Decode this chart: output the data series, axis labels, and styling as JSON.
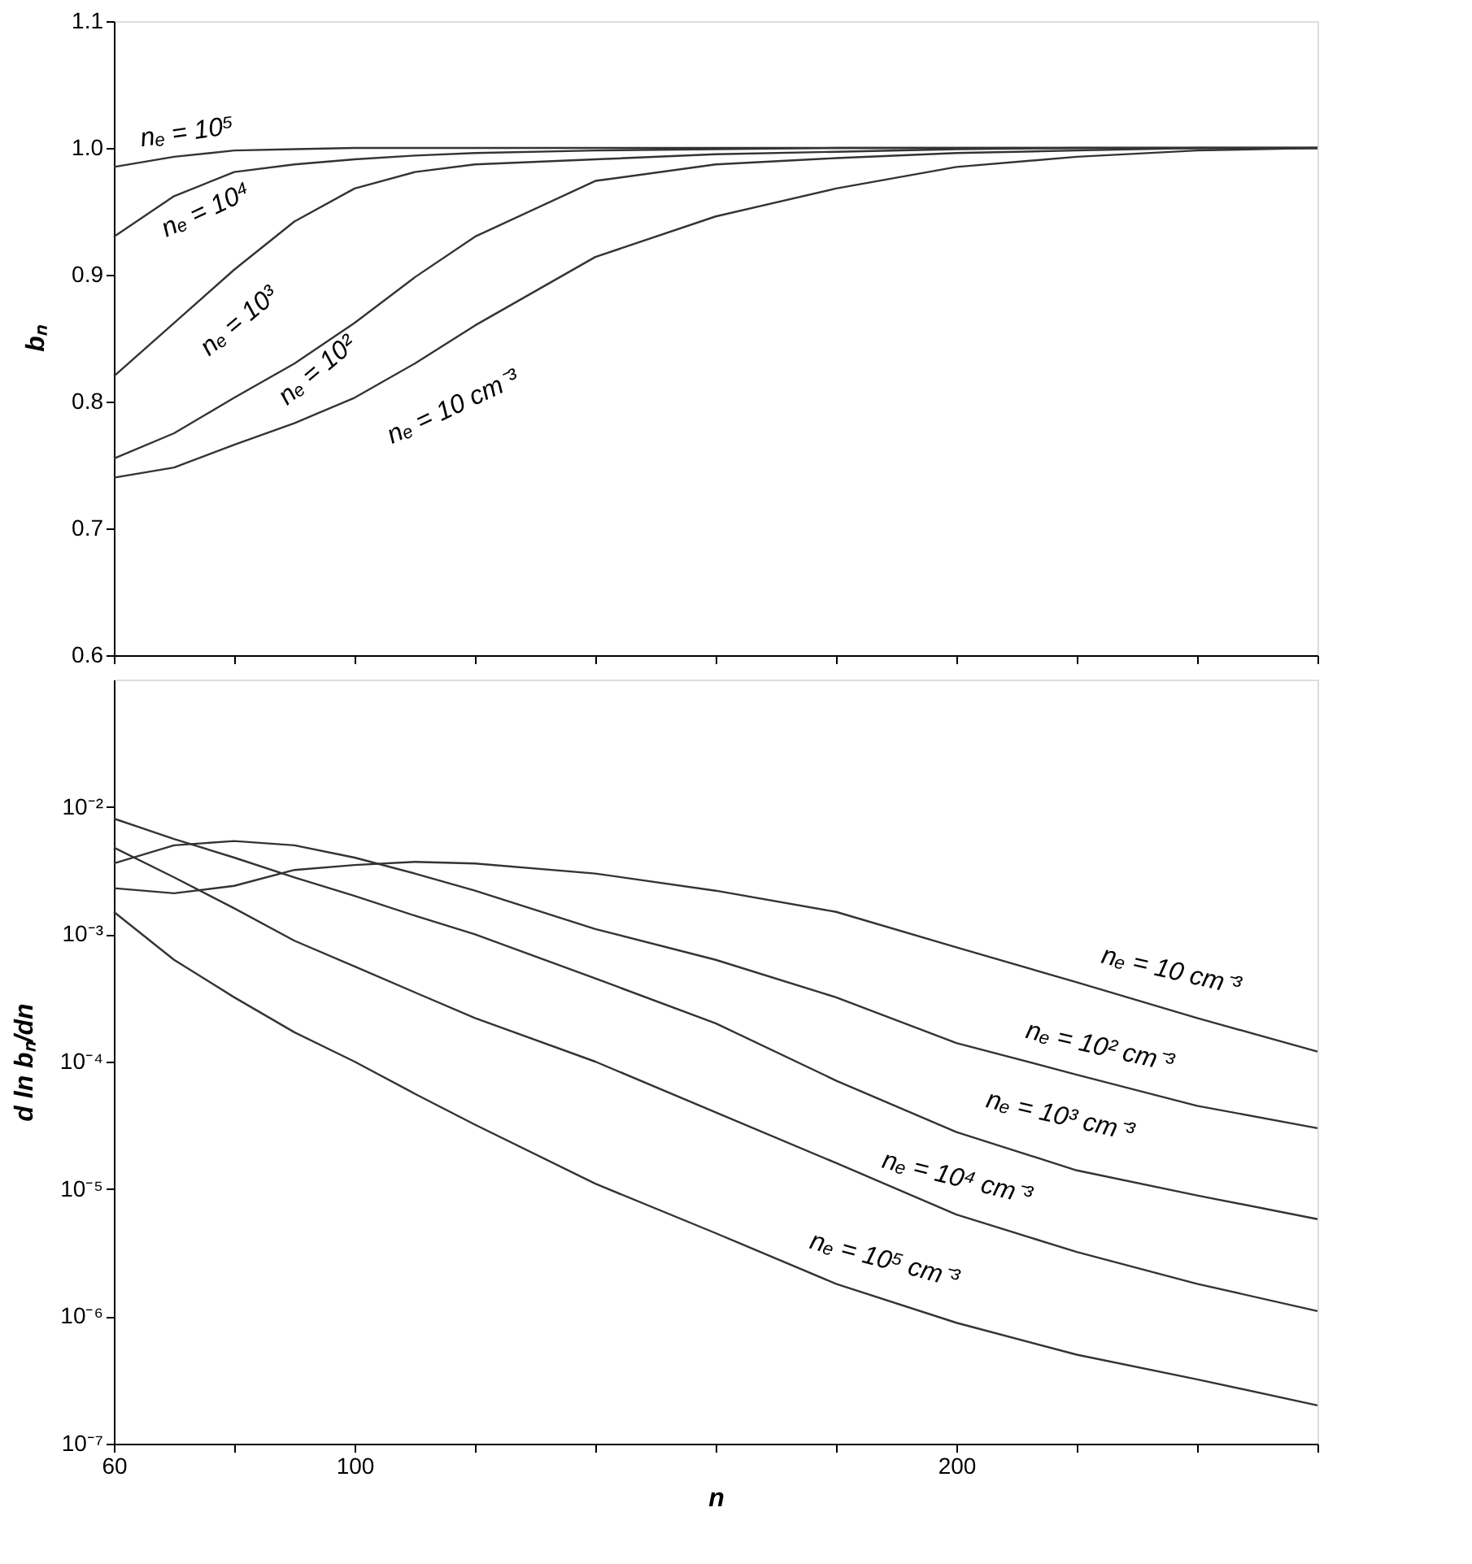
{
  "chart_data": [
    {
      "type": "line",
      "ylabel": "bₙ",
      "xlim": [
        60,
        260
      ],
      "ylim": [
        0.6,
        1.1
      ],
      "tick_labels": "y",
      "grid": false,
      "legend": false,
      "marker": "none",
      "line_style": "solid",
      "xticks": [
        60,
        80,
        100,
        120,
        140,
        160,
        180,
        200,
        220,
        240,
        260
      ],
      "yticks": [
        {
          "value": 0.6,
          "label": "0.6"
        },
        {
          "value": 0.7,
          "label": "0.7"
        },
        {
          "value": 0.8,
          "label": "0.8"
        },
        {
          "value": 0.9,
          "label": "0.9"
        },
        {
          "value": 1.0,
          "label": "1.0"
        },
        {
          "value": 1.1,
          "label": "1.1"
        }
      ],
      "x": [
        60,
        70,
        80,
        90,
        100,
        110,
        120,
        140,
        160,
        180,
        200,
        220,
        240,
        260
      ],
      "series": [
        {
          "name": "nₑ = 10⁵",
          "color": "#333333",
          "values": [
            0.985,
            0.993,
            0.998,
            0.999,
            1.0,
            1.0,
            1.0,
            1.0,
            1.0,
            1.0,
            1.0,
            1.0,
            1.0,
            1.0
          ]
        },
        {
          "name": "nₑ = 10⁴",
          "color": "#333333",
          "values": [
            0.93,
            0.962,
            0.981,
            0.987,
            0.991,
            0.994,
            0.996,
            0.998,
            0.999,
            1.0,
            1.0,
            1.0,
            1.0,
            1.0
          ]
        },
        {
          "name": "nₑ = 10³",
          "color": "#333333",
          "values": [
            0.82,
            0.862,
            0.904,
            0.942,
            0.968,
            0.981,
            0.987,
            0.991,
            0.995,
            0.997,
            0.999,
            1.0,
            1.0,
            1.0
          ]
        },
        {
          "name": "nₑ = 10²",
          "color": "#333333",
          "values": [
            0.755,
            0.775,
            0.803,
            0.83,
            0.862,
            0.898,
            0.93,
            0.974,
            0.987,
            0.992,
            0.996,
            0.998,
            1.0,
            1.0
          ]
        },
        {
          "name": "nₑ = 10 cm⁻³",
          "color": "#333333",
          "values": [
            0.74,
            0.748,
            0.766,
            0.783,
            0.803,
            0.83,
            0.86,
            0.914,
            0.946,
            0.968,
            0.985,
            0.993,
            0.998,
            1.0
          ]
        }
      ]
    },
    {
      "type": "line",
      "xlabel": "n",
      "ylabel": "d ln bₙ/dn",
      "log": "y",
      "xlim": [
        60,
        260
      ],
      "ylim": [
        1e-07,
        0.1
      ],
      "grid": false,
      "legend": false,
      "marker": "none",
      "line_style": "solid",
      "xticks": [
        60,
        {
          "value": 80,
          "label": null
        },
        100,
        {
          "value": 120,
          "label": null
        },
        {
          "value": 140,
          "label": null
        },
        {
          "value": 160,
          "label": null
        },
        {
          "value": 180,
          "label": null
        },
        200,
        {
          "value": 220,
          "label": null
        },
        {
          "value": 240,
          "label": null
        },
        {
          "value": 260,
          "label": null
        }
      ],
      "yticks": [
        {
          "value": 1e-07,
          "label": "10⁻⁷"
        },
        {
          "value": 1e-06,
          "label": "10⁻⁶"
        },
        {
          "value": 1e-05,
          "label": "10⁻⁵"
        },
        {
          "value": 0.0001,
          "label": "10⁻⁴"
        },
        {
          "value": 0.001,
          "label": "10⁻³"
        },
        {
          "value": 0.01,
          "label": "10⁻²"
        }
      ],
      "x": [
        60,
        70,
        80,
        90,
        100,
        110,
        120,
        140,
        160,
        180,
        200,
        220,
        240,
        260
      ],
      "series": [
        {
          "name": "nₑ = 10 cm⁻³",
          "color": "#333333",
          "values": [
            0.0023,
            0.0021,
            0.0024,
            0.0032,
            0.0035,
            0.0037,
            0.0036,
            0.003,
            0.0022,
            0.0015,
            0.00079,
            0.00042,
            0.00022,
            0.00012
          ]
        },
        {
          "name": "nₑ = 10² cm⁻³",
          "color": "#333333",
          "values": [
            0.0036,
            0.005,
            0.0054,
            0.005,
            0.004,
            0.003,
            0.0022,
            0.0011,
            0.00063,
            0.00032,
            0.00014,
            7.9e-05,
            4.5e-05,
            3e-05
          ]
        },
        {
          "name": "nₑ = 10³ cm⁻³",
          "color": "#333333",
          "values": [
            0.0081,
            0.0056,
            0.004,
            0.0028,
            0.002,
            0.0014,
            0.001,
            0.00045,
            0.0002,
            7.1e-05,
            2.8e-05,
            1.4e-05,
            8.9e-06,
            5.8e-06
          ]
        },
        {
          "name": "nₑ = 10⁴ cm⁻³",
          "color": "#333333",
          "values": [
            0.0048,
            0.0028,
            0.0016,
            0.00089,
            0.00056,
            0.00035,
            0.00022,
            0.0001,
            4e-05,
            1.6e-05,
            6.3e-06,
            3.2e-06,
            1.8e-06,
            1.1e-06
          ]
        },
        {
          "name": "nₑ = 10⁵ cm⁻³",
          "color": "#333333",
          "values": [
            0.0015,
            0.00063,
            0.00032,
            0.00017,
            0.0001,
            5.6e-05,
            3.2e-05,
            1.1e-05,
            4.5e-06,
            1.8e-06,
            8.9e-07,
            5e-07,
            3.2e-07,
            2e-07
          ]
        }
      ]
    }
  ]
}
